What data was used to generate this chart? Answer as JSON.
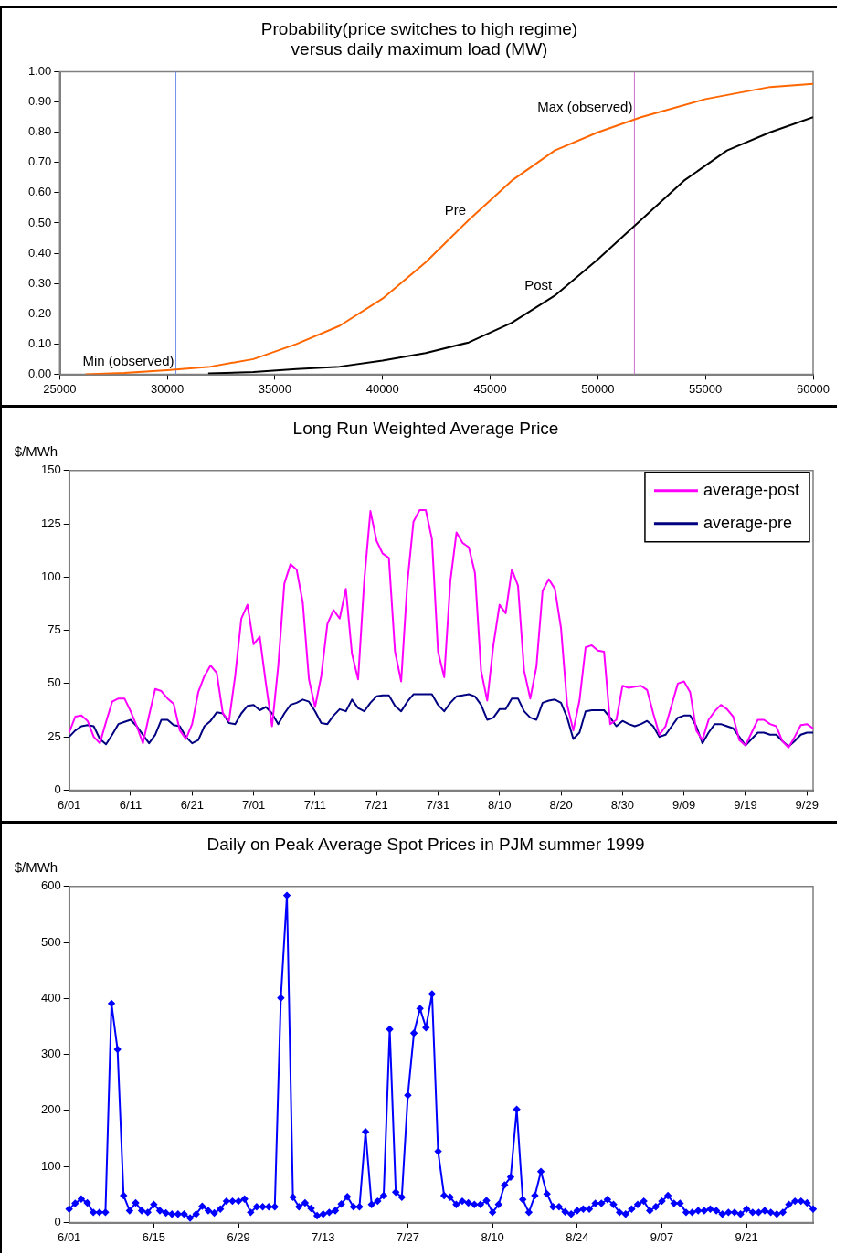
{
  "chart_data": [
    {
      "type": "line",
      "title": "Probability(price switches to high regime)\nversus daily maximum load (MW)",
      "series": [
        {
          "name": "Pre",
          "color": "#ff6600",
          "x": [
            26200,
            28000,
            30000,
            32000,
            34000,
            36000,
            38000,
            40000,
            42000,
            44000,
            46000,
            48000,
            50000,
            52000,
            55000,
            58000,
            60000
          ],
          "values": [
            0,
            0.004,
            0.013,
            0.025,
            0.05,
            0.1,
            0.16,
            0.25,
            0.37,
            0.51,
            0.64,
            0.74,
            0.8,
            0.85,
            0.91,
            0.95,
            0.96
          ]
        },
        {
          "name": "Post",
          "color": "#000000",
          "x": [
            31900,
            34000,
            36000,
            38000,
            40000,
            42000,
            44000,
            46000,
            48000,
            50000,
            52000,
            54000,
            56000,
            58000,
            60000
          ],
          "values": [
            0.003,
            0.007,
            0.017,
            0.025,
            0.045,
            0.07,
            0.105,
            0.17,
            0.26,
            0.38,
            0.51,
            0.64,
            0.74,
            0.8,
            0.85
          ]
        }
      ],
      "xlim": [
        25000,
        60000
      ],
      "xticks": [
        25000,
        30000,
        35000,
        40000,
        45000,
        50000,
        55000,
        60000
      ],
      "ylim": [
        0,
        1
      ],
      "yticks": [
        {
          "value": 0,
          "label": "0.00"
        },
        {
          "value": 0.1,
          "label": "0.10"
        },
        {
          "value": 0.2,
          "label": "0.20"
        },
        {
          "value": 0.3,
          "label": "0.30"
        },
        {
          "value": 0.4,
          "label": "0.40"
        },
        {
          "value": 0.5,
          "label": "0.50"
        },
        {
          "value": 0.6,
          "label": "0.60"
        },
        {
          "value": 0.7,
          "label": "0.70"
        },
        {
          "value": 0.8,
          "label": "0.80"
        },
        {
          "value": 0.9,
          "label": "0.90"
        },
        {
          "value": 1,
          "label": "1.00"
        }
      ],
      "ref_lines": [
        {
          "axis": "x",
          "value": 30400,
          "color": "#6f8fe8"
        },
        {
          "axis": "x",
          "value": 51700,
          "color": "#d070d0"
        }
      ],
      "annotations": [
        {
          "text": "Min (observed)",
          "x": 30400,
          "y": 0.013
        },
        {
          "text": "Max (observed)",
          "x": 51700,
          "y": 0.855
        }
      ],
      "grid": false,
      "legend": false
    },
    {
      "type": "line",
      "title": "Long Run Weighted Average Price",
      "ylabel": "$/MWh",
      "categories": [
        "6/01",
        null,
        null,
        null,
        null,
        null,
        null,
        null,
        null,
        null,
        "6/11",
        null,
        null,
        null,
        null,
        null,
        null,
        null,
        null,
        null,
        "6/21",
        null,
        null,
        null,
        null,
        null,
        null,
        null,
        null,
        null,
        "7/01",
        null,
        null,
        null,
        null,
        null,
        null,
        null,
        null,
        null,
        "7/11",
        null,
        null,
        null,
        null,
        null,
        null,
        null,
        null,
        null,
        "7/21",
        null,
        null,
        null,
        null,
        null,
        null,
        null,
        null,
        null,
        "7/31",
        null,
        null,
        null,
        null,
        null,
        null,
        null,
        null,
        null,
        "8/10",
        null,
        null,
        null,
        null,
        null,
        null,
        null,
        null,
        null,
        "8/20",
        null,
        null,
        null,
        null,
        null,
        null,
        null,
        null,
        null,
        "8/30",
        null,
        null,
        null,
        null,
        null,
        null,
        null,
        null,
        null,
        "9/09",
        null,
        null,
        null,
        null,
        null,
        null,
        null,
        null,
        null,
        "9/19",
        null,
        null,
        null,
        null,
        null,
        null,
        null,
        null,
        null,
        "9/29",
        null
      ],
      "series": [
        {
          "name": "average-post",
          "color": "#ff00ff",
          "values": [
            27,
            34.5,
            35,
            32.5,
            25,
            22,
            32,
            41.5,
            43,
            43,
            37,
            30,
            22,
            35,
            47.5,
            46.5,
            43,
            40.5,
            28,
            24,
            31,
            46,
            53.5,
            58.5,
            55,
            36,
            32.5,
            53.5,
            80.5,
            87,
            68.5,
            72,
            50,
            30,
            58,
            97,
            106,
            103.5,
            88,
            52,
            39,
            53.5,
            78,
            84.5,
            80.5,
            94.5,
            64,
            52,
            98.5,
            131,
            117,
            111,
            109,
            65,
            51,
            97,
            126,
            131.5,
            131.5,
            118,
            65,
            53,
            98,
            121,
            116,
            114,
            102,
            56,
            42,
            68,
            87,
            83,
            103.5,
            96,
            56,
            43,
            58,
            93.5,
            99,
            94.5,
            76,
            40,
            28,
            42,
            67,
            68,
            65.5,
            65,
            31,
            33,
            49,
            48,
            48.5,
            49,
            47,
            36,
            26,
            30,
            40,
            50,
            51,
            46,
            28,
            23.5,
            33,
            37,
            40,
            38,
            34.5,
            23.5,
            21,
            27,
            33,
            33,
            31,
            30,
            23,
            20,
            25,
            30.5,
            31,
            29
          ]
        },
        {
          "name": "average-pre",
          "color": "#000080",
          "values": [
            25,
            28,
            30,
            30.5,
            30,
            24,
            21.5,
            26,
            31,
            32,
            33,
            30,
            26,
            22,
            26,
            33,
            33,
            30.5,
            30,
            25,
            22,
            23.5,
            30,
            32.5,
            36.5,
            36,
            31.5,
            31,
            36,
            39.5,
            40,
            37.5,
            39,
            36,
            31,
            36,
            40,
            41,
            42.5,
            41.5,
            37,
            31.5,
            31,
            35,
            38,
            37,
            42.5,
            38.5,
            37,
            41,
            44,
            44.5,
            44.5,
            39.5,
            37,
            41.5,
            45,
            45,
            45,
            45,
            40,
            37,
            41,
            44,
            44.5,
            45,
            44,
            40,
            33,
            34,
            38,
            38,
            43,
            43,
            37,
            34,
            33,
            41,
            42,
            42.5,
            41,
            34,
            24,
            27,
            37,
            37.5,
            37.5,
            37.5,
            34,
            30,
            32.5,
            31,
            30,
            31,
            32.5,
            30,
            25,
            26,
            30,
            34,
            35,
            35,
            30,
            22,
            27,
            31,
            31,
            30,
            29,
            25,
            21,
            24,
            27,
            27,
            26,
            26,
            23,
            20.5,
            23,
            26,
            27,
            27
          ]
        }
      ],
      "ylim": [
        0,
        150
      ],
      "yticks": [
        0,
        25,
        50,
        75,
        100,
        125,
        150
      ],
      "grid": false,
      "legend": "top right"
    },
    {
      "type": "line",
      "title": "Daily on Peak Average Spot Prices in PJM summer 1999",
      "ylabel": "$/MWh",
      "categories": [
        "6/01",
        null,
        null,
        null,
        null,
        null,
        null,
        null,
        null,
        null,
        null,
        null,
        null,
        null,
        "6/15",
        null,
        null,
        null,
        null,
        null,
        null,
        null,
        null,
        null,
        null,
        null,
        null,
        null,
        "6/29",
        null,
        null,
        null,
        null,
        null,
        null,
        null,
        null,
        null,
        null,
        null,
        null,
        null,
        "7/13",
        null,
        null,
        null,
        null,
        null,
        null,
        null,
        null,
        null,
        null,
        null,
        null,
        null,
        "7/27",
        null,
        null,
        null,
        null,
        null,
        null,
        null,
        null,
        null,
        null,
        null,
        null,
        null,
        "8/10",
        null,
        null,
        null,
        null,
        null,
        null,
        null,
        null,
        null,
        null,
        null,
        null,
        null,
        "8/24",
        null,
        null,
        null,
        null,
        null,
        null,
        null,
        null,
        null,
        null,
        null,
        null,
        null,
        "9/07",
        null,
        null,
        null,
        null,
        null,
        null,
        null,
        null,
        null,
        null,
        null,
        null,
        null,
        "9/21",
        null,
        null,
        null,
        null,
        null,
        null,
        null,
        null,
        null,
        null,
        null
      ],
      "values": [
        24,
        34,
        42,
        35,
        18,
        18,
        18,
        391,
        309,
        48,
        21,
        35,
        21,
        18,
        32,
        21,
        17,
        15,
        15,
        15,
        8,
        15,
        29,
        21,
        17,
        24,
        38,
        38,
        38,
        42,
        18,
        28,
        28,
        28,
        28,
        401,
        584,
        45,
        28,
        35,
        25,
        12,
        15,
        18,
        21,
        33,
        46,
        28,
        28,
        162,
        32,
        38,
        48,
        345,
        54,
        45,
        227,
        338,
        382,
        348,
        408,
        127,
        48,
        45,
        32,
        38,
        35,
        32,
        32,
        39,
        18,
        32,
        67,
        81,
        202,
        41,
        18,
        48,
        91,
        51,
        28,
        28,
        19,
        15,
        21,
        24,
        24,
        34,
        34,
        41,
        32,
        18,
        15,
        24,
        32,
        38,
        21,
        28,
        38,
        48,
        34,
        34,
        18,
        18,
        21,
        21,
        24,
        21,
        15,
        18,
        18,
        15,
        24,
        18,
        18,
        21,
        18,
        15,
        18,
        32,
        38,
        38,
        35,
        24
      ],
      "color": "#0000ff",
      "marker": "diamond",
      "ylim": [
        0,
        600
      ],
      "yticks": [
        0,
        100,
        200,
        300,
        400,
        500,
        600
      ],
      "grid": false,
      "legend": false
    }
  ]
}
